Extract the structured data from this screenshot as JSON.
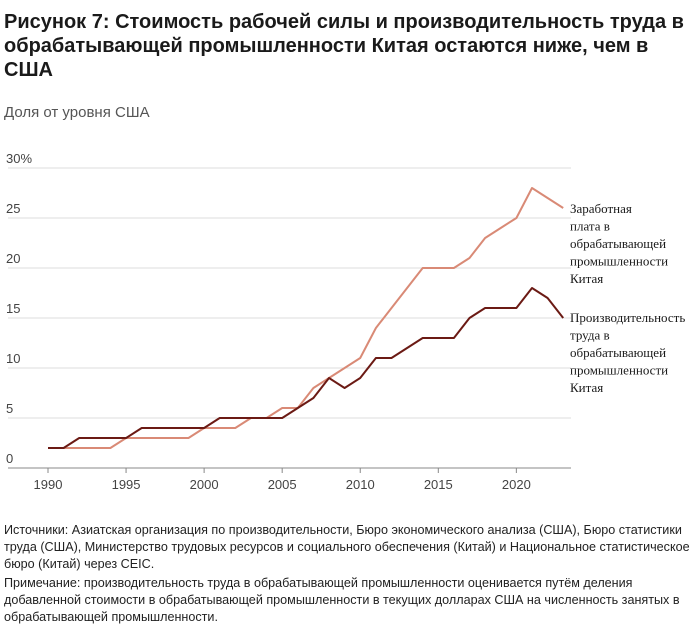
{
  "figure": {
    "title": "Рисунок 7: Стоимость рабочей силы и производительность труда в обрабатывающей промышленности Китая остаются ниже, чем в США",
    "subtitle": "Доля от уровня США",
    "source": "Источники: Азиатская организация по производительности, Бюро экономического анализа (США), Бюро статистики труда (США), Министерство трудовых ресурсов и социального обеспечения (Китай) и Национальное статистическое бюро (Китай) через CEIC.",
    "note": "Примечание: производительность труда в обрабатывающей промышленности оценивается путём деления добавленной стоимости в обрабатывающей промышленности в текущих долларах США на численность занятых в обрабатывающей промышленности."
  },
  "chart_data": {
    "type": "line",
    "x": [
      1990,
      1991,
      1992,
      1993,
      1994,
      1995,
      1996,
      1997,
      1998,
      1999,
      2000,
      2001,
      2002,
      2003,
      2004,
      2005,
      2006,
      2007,
      2008,
      2009,
      2010,
      2011,
      2012,
      2013,
      2014,
      2015,
      2016,
      2017,
      2018,
      2019,
      2020,
      2021,
      2022,
      2023
    ],
    "xlim": [
      1990,
      2023.5
    ],
    "xticks": [
      "1990",
      "1995",
      "2000",
      "2005",
      "2010",
      "2015",
      "2020"
    ],
    "ylim": [
      0,
      30
    ],
    "yticks": [
      "0",
      "5",
      "10",
      "15",
      "20",
      "25",
      "30%"
    ],
    "grid": "horizontal",
    "series": [
      {
        "name": "Заработная плата в обрабатывающей промышленности Китая",
        "label_lines": [
          "Заработная",
          "плата в",
          "обрабатывающей",
          "промышленности",
          "Китая"
        ],
        "color": "#d98a76",
        "values": [
          2,
          2,
          2,
          2,
          2,
          3,
          3,
          3,
          3,
          3,
          4,
          4,
          4,
          5,
          5,
          6,
          6,
          8,
          9,
          10,
          11,
          14,
          16,
          18,
          20,
          20,
          20,
          21,
          23,
          24,
          25,
          28,
          27,
          26
        ]
      },
      {
        "name": "Производительность труда в обрабатывающей промышленности Китая",
        "label_lines": [
          "Производительность",
          "труда в",
          "обрабатывающей",
          "промышленности",
          "Китая"
        ],
        "color": "#6b1a14",
        "values": [
          2,
          2,
          3,
          3,
          3,
          3,
          4,
          4,
          4,
          4,
          4,
          5,
          5,
          5,
          5,
          5,
          6,
          7,
          9,
          8,
          9,
          11,
          11,
          12,
          13,
          13,
          13,
          15,
          16,
          16,
          16,
          18,
          17,
          15
        ]
      }
    ]
  }
}
